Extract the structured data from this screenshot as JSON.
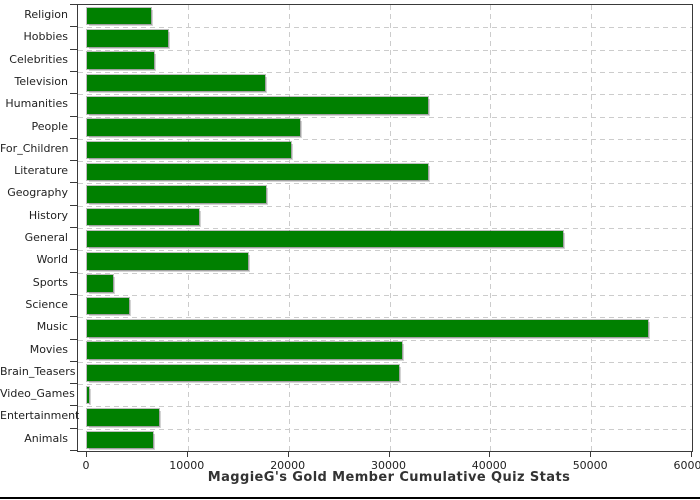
{
  "chart_data": {
    "type": "bar",
    "orientation": "horizontal",
    "title": "MaggieG's Gold Member Cumulative Quiz Stats",
    "categories": [
      "Religion",
      "Hobbies",
      "Celebrities",
      "Television",
      "Humanities",
      "People",
      "For_Children",
      "Literature",
      "Geography",
      "History",
      "General",
      "World",
      "Sports",
      "Science",
      "Music",
      "Movies",
      "Brain_Teasers",
      "Video_Games",
      "Entertainment",
      "Animals"
    ],
    "values": [
      6350,
      8050,
      6650,
      17600,
      33800,
      21100,
      20200,
      33850,
      17750,
      11100,
      47250,
      15950,
      2600,
      4150,
      55600,
      31200,
      30950,
      170,
      7100,
      6550
    ],
    "xlabel": "",
    "ylabel": "",
    "xlim": [
      0,
      60000
    ],
    "x_ticks": [
      0,
      10000,
      20000,
      30000,
      40000,
      50000,
      60000
    ],
    "x_tick_labels": [
      "0",
      "10000",
      "20000",
      "30000",
      "40000",
      "50000",
      "60000"
    ],
    "grid": true,
    "legend": "none",
    "colors": {
      "bar": "#008000",
      "bar_shadow": "#d3d3d3",
      "gridline": "#cccccc",
      "axis": "#3a3a3a",
      "tick_label": "#222222",
      "title": "#333333",
      "background": "#ffffff",
      "bottom_rule": "#000000"
    }
  }
}
